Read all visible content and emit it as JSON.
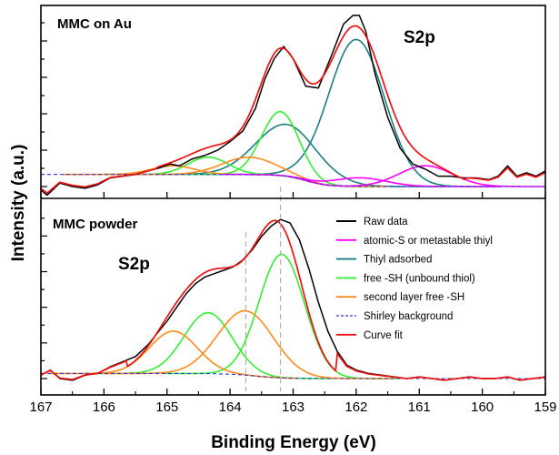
{
  "chart_data": {
    "type": "line",
    "xlabel": "Binding Energy (eV)",
    "ylabel": "Intensity (a.u.)",
    "xlim": [
      167,
      159
    ],
    "x_ticks": [
      "167",
      "166",
      "165",
      "164",
      "163",
      "162",
      "161",
      "160",
      "159"
    ],
    "x_reversed": true,
    "legend_position": "right",
    "legend": [
      {
        "name": "Raw data",
        "color": "#000000",
        "dashed": false
      },
      {
        "name": "atomic-S or metastable thiyl",
        "color": "#ff00ff",
        "dashed": false
      },
      {
        "name": "Thiyl adsorbed",
        "color": "#1a7f80",
        "dashed": false
      },
      {
        "name": "free -SH (unbound thiol)",
        "color": "#33ee33",
        "dashed": false
      },
      {
        "name": "second layer free -SH",
        "color": "#ff8a1a",
        "dashed": false
      },
      {
        "name": "Shirley background",
        "color": "#3333dd",
        "dashed": true
      },
      {
        "name": "Curve fit",
        "color": "#ee1111",
        "dashed": false
      }
    ],
    "reference_lines_ev": [
      163.75,
      163.2
    ],
    "panels": [
      {
        "title": "MMC on Au",
        "peak_label": "S2p",
        "ylim": [
          0,
          1
        ],
        "shirley": {
          "high": 0.07,
          "low": 0.0,
          "center": 162.8,
          "width": 0.7
        },
        "components": [
          {
            "name": "Thiyl adsorbed",
            "color": "#1a7f80",
            "center": 162.0,
            "amplitude": 0.85,
            "fwhm": 1.05
          },
          {
            "name": "Thiyl adsorbed",
            "color": "#1a7f80",
            "center": 163.1,
            "amplitude": 0.3,
            "fwhm": 1.15
          },
          {
            "name": "free -SH (unbound thiol)",
            "color": "#33ee33",
            "center": 163.2,
            "amplitude": 0.37,
            "fwhm": 0.7
          },
          {
            "name": "free -SH (unbound thiol)",
            "color": "#33ee33",
            "center": 164.35,
            "amplitude": 0.1,
            "fwhm": 0.75
          },
          {
            "name": "second layer free -SH",
            "color": "#ff8a1a",
            "center": 163.7,
            "amplitude": 0.1,
            "fwhm": 1.0
          },
          {
            "name": "second layer free -SH",
            "color": "#ff8a1a",
            "center": 164.9,
            "amplitude": 0.05,
            "fwhm": 0.8
          },
          {
            "name": "atomic-S or metastable thiyl",
            "color": "#ff00ff",
            "center": 161.95,
            "amplitude": 0.05,
            "fwhm": 1.0
          },
          {
            "name": "atomic-S or metastable thiyl",
            "color": "#ff00ff",
            "center": 160.9,
            "amplitude": 0.12,
            "fwhm": 1.0
          }
        ],
        "raw_data": {
          "x": [
            167.0,
            166.9,
            166.7,
            166.5,
            166.3,
            166.1,
            165.9,
            165.7,
            165.5,
            165.3,
            165.1,
            164.95,
            164.8,
            164.6,
            164.4,
            164.2,
            164.0,
            163.8,
            163.6,
            163.45,
            163.3,
            163.15,
            163.0,
            162.8,
            162.6,
            162.4,
            162.2,
            162.05,
            161.95,
            161.85,
            161.7,
            161.5,
            161.3,
            161.1,
            160.9,
            160.7,
            160.5,
            160.3,
            160.1,
            159.9,
            159.75,
            159.6,
            159.45,
            159.3,
            159.15,
            159.0
          ],
          "y": [
            -0.02,
            -0.05,
            0.02,
            0.0,
            -0.01,
            0.01,
            0.05,
            0.06,
            0.07,
            0.09,
            0.11,
            0.13,
            0.12,
            0.16,
            0.18,
            0.21,
            0.26,
            0.32,
            0.45,
            0.62,
            0.74,
            0.81,
            0.74,
            0.58,
            0.57,
            0.75,
            0.94,
            0.99,
            0.99,
            0.9,
            0.65,
            0.4,
            0.22,
            0.13,
            0.1,
            0.06,
            0.06,
            0.05,
            0.05,
            0.04,
            0.06,
            0.12,
            0.06,
            0.08,
            0.06,
            0.09
          ]
        }
      },
      {
        "title": "MMC powder",
        "peak_label": "S2p",
        "ylim": [
          0,
          1
        ],
        "shirley": {
          "high": 0.03,
          "low": 0.0,
          "center": 163.6,
          "width": 0.9
        },
        "components": [
          {
            "name": "free -SH (unbound thiol)",
            "color": "#33ee33",
            "center": 163.18,
            "amplitude": 0.73,
            "fwhm": 0.85
          },
          {
            "name": "free -SH (unbound thiol)",
            "color": "#33ee33",
            "center": 164.35,
            "amplitude": 0.36,
            "fwhm": 0.9
          },
          {
            "name": "second layer free -SH",
            "color": "#ff8a1a",
            "center": 163.75,
            "amplitude": 0.38,
            "fwhm": 1.05
          },
          {
            "name": "second layer free -SH",
            "color": "#ff8a1a",
            "center": 164.9,
            "amplitude": 0.25,
            "fwhm": 0.9
          }
        ],
        "raw_data": {
          "x": [
            167.0,
            166.85,
            166.7,
            166.5,
            166.3,
            166.1,
            165.9,
            165.7,
            165.5,
            165.3,
            165.15,
            165.0,
            164.85,
            164.7,
            164.55,
            164.4,
            164.25,
            164.1,
            163.95,
            163.8,
            163.65,
            163.5,
            163.35,
            163.2,
            163.05,
            162.9,
            162.75,
            162.6,
            162.45,
            162.3,
            162.15,
            162.0,
            161.8,
            161.6,
            161.4,
            161.2,
            161.0,
            160.8,
            160.6,
            160.4,
            160.2,
            160.0,
            159.8,
            159.6,
            159.4,
            159.2,
            159.0
          ],
          "y": [
            0.02,
            0.05,
            0.0,
            -0.01,
            0.02,
            0.03,
            0.07,
            0.1,
            0.13,
            0.2,
            0.27,
            0.34,
            0.42,
            0.5,
            0.56,
            0.6,
            0.62,
            0.64,
            0.66,
            0.7,
            0.76,
            0.84,
            0.9,
            0.94,
            0.92,
            0.82,
            0.65,
            0.45,
            0.28,
            0.16,
            0.08,
            0.05,
            0.03,
            0.02,
            0.01,
            0.0,
            0.01,
            0.0,
            -0.01,
            0.0,
            0.01,
            0.0,
            0.0,
            0.01,
            -0.01,
            0.0,
            0.01
          ]
        }
      }
    ]
  }
}
